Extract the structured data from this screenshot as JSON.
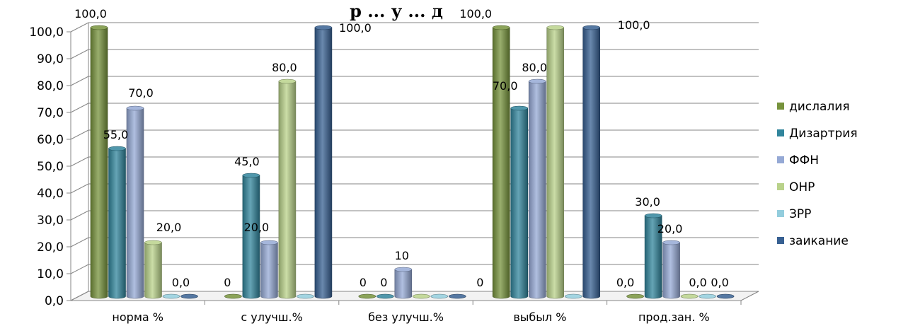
{
  "chart_data": {
    "type": "bar",
    "title": "р ... у ... д",
    "categories": [
      "норма %",
      "с улучш.%",
      "без улучш.%",
      "выбыл %",
      "прод.зан. %"
    ],
    "ylim": [
      0,
      100
    ],
    "yticks": [
      "0,0",
      "10,0",
      "20,0",
      "30,0",
      "40,0",
      "50,0",
      "60,0",
      "70,0",
      "80,0",
      "90,0",
      "100,0"
    ],
    "grid": true,
    "legend_position": "right",
    "series": [
      {
        "name": "дислалия",
        "color": "#77933c",
        "values": [
          100,
          0,
          0,
          100,
          0
        ],
        "labels": [
          "100,0",
          "0",
          "0",
          "100,0",
          "0,0"
        ]
      },
      {
        "name": "Дизартрия",
        "color": "#31859c",
        "values": [
          55,
          45,
          0,
          70,
          30
        ],
        "labels": [
          "55,0",
          "45,0",
          "0",
          "70,0",
          "30,0"
        ]
      },
      {
        "name": "ФФН",
        "color": "#95a9d5",
        "values": [
          70,
          20,
          10,
          80,
          20
        ],
        "labels": [
          "70,0",
          "20,0",
          "10",
          "80,0",
          "20,0"
        ]
      },
      {
        "name": "ОНР",
        "color": "#b9d28a",
        "values": [
          20,
          80,
          0,
          100,
          0
        ],
        "labels": [
          "20,0",
          "80,0",
          "",
          "100,0",
          "0,0"
        ]
      },
      {
        "name": "ЗРР",
        "color": "#93cddd",
        "values": [
          0,
          0,
          0,
          0,
          0
        ],
        "labels": [
          "",
          "",
          "",
          "",
          ""
        ]
      },
      {
        "name": "заикание",
        "color": "#376092",
        "values": [
          0,
          100,
          0,
          100,
          0
        ],
        "labels": [
          "0,0",
          "100,0",
          "0",
          "100,0",
          "0,0"
        ]
      }
    ]
  }
}
